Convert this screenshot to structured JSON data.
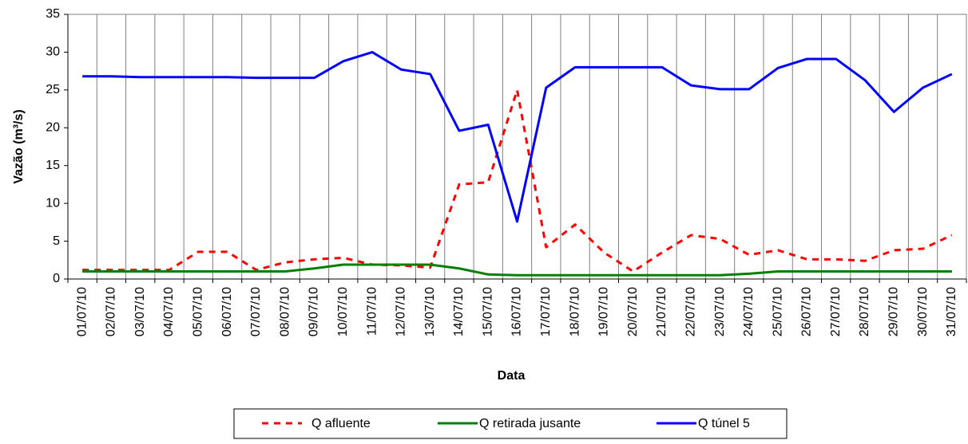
{
  "chart_data": {
    "type": "line",
    "xlabel": "Data",
    "ylabel": "Vazão (m³/s)",
    "categories": [
      "01/07/10",
      "02/07/10",
      "03/07/10",
      "04/07/10",
      "05/07/10",
      "06/07/10",
      "07/07/10",
      "08/07/10",
      "09/07/10",
      "10/07/10",
      "11/07/10",
      "12/07/10",
      "13/07/10",
      "14/07/10",
      "15/07/10",
      "16/07/10",
      "17/07/10",
      "18/07/10",
      "19/07/10",
      "20/07/10",
      "21/07/10",
      "22/07/10",
      "23/07/10",
      "24/07/10",
      "25/07/10",
      "26/07/10",
      "27/07/10",
      "28/07/10",
      "29/07/10",
      "30/07/10",
      "31/07/10"
    ],
    "series": [
      {
        "name": "Q afluente",
        "color": "#ff0000",
        "dashed": true,
        "values": [
          1.2,
          1.2,
          1.2,
          1.2,
          3.6,
          3.6,
          1.2,
          2.2,
          2.6,
          2.8,
          1.9,
          1.8,
          1.5,
          12.5,
          12.8,
          25,
          4.2,
          7.2,
          3.5,
          1.0,
          3.5,
          5.8,
          5.3,
          3.2,
          3.8,
          2.6,
          2.6,
          2.4,
          3.8,
          4.0,
          5.8
        ]
      },
      {
        "name": "Q retirada jusante",
        "color": "#008000",
        "dashed": false,
        "values": [
          1.0,
          1.0,
          1.0,
          1.0,
          1.0,
          1.0,
          1.0,
          1.0,
          1.4,
          1.9,
          1.9,
          1.9,
          1.9,
          1.4,
          0.6,
          0.5,
          0.5,
          0.5,
          0.5,
          0.5,
          0.5,
          0.5,
          0.5,
          0.7,
          1.0,
          1.0,
          1.0,
          1.0,
          1.0,
          1.0,
          1.0
        ]
      },
      {
        "name": "Q túnel 5",
        "color": "#0000ff",
        "dashed": false,
        "values": [
          26.8,
          26.8,
          26.7,
          26.7,
          26.7,
          26.7,
          26.6,
          26.6,
          26.6,
          28.8,
          30.0,
          27.7,
          27.1,
          19.6,
          20.4,
          7.6,
          25.3,
          28.0,
          28.0,
          28.0,
          28.0,
          25.6,
          25.1,
          25.1,
          27.9,
          29.1,
          29.1,
          26.3,
          22.1,
          25.3,
          27.1
        ]
      }
    ],
    "ylim": [
      0,
      35
    ],
    "yticks": [
      0,
      5,
      10,
      15,
      20,
      25,
      30,
      35
    ],
    "grid": "x",
    "legend": "bottom"
  }
}
